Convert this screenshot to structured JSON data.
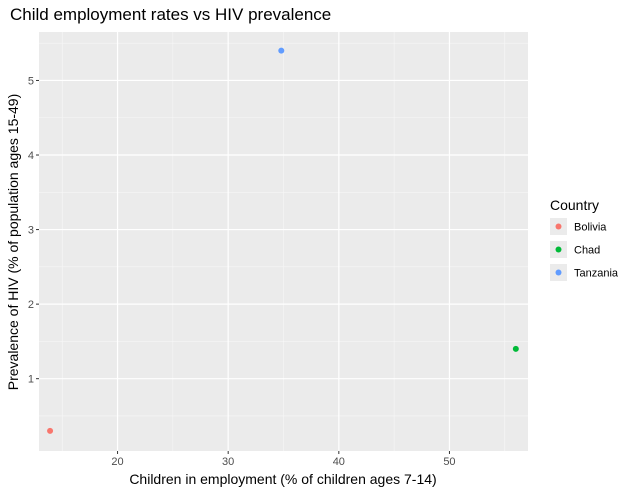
{
  "chart_data": {
    "type": "scatter",
    "title": "Child employment rates vs HIV prevalence",
    "xlabel": "Children in employment (% of children ages 7-14)",
    "ylabel": "Prevalence of HIV (% of population ages 15-49)",
    "xlim": [
      12.9,
      57.1
    ],
    "ylim": [
      0.03,
      5.65
    ],
    "xticks": [
      20,
      30,
      40,
      50
    ],
    "yticks": [
      1,
      2,
      3,
      4,
      5
    ],
    "grid": true,
    "legend": {
      "title": "Country",
      "position": "right"
    },
    "series": [
      {
        "name": "Bolivia",
        "color": "#F8766D",
        "points": [
          {
            "x": 13.9,
            "y": 0.3
          }
        ]
      },
      {
        "name": "Chad",
        "color": "#00BA38",
        "points": [
          {
            "x": 56.0,
            "y": 1.4
          }
        ]
      },
      {
        "name": "Tanzania",
        "color": "#619CFF",
        "points": [
          {
            "x": 34.8,
            "y": 5.4
          }
        ]
      }
    ]
  }
}
